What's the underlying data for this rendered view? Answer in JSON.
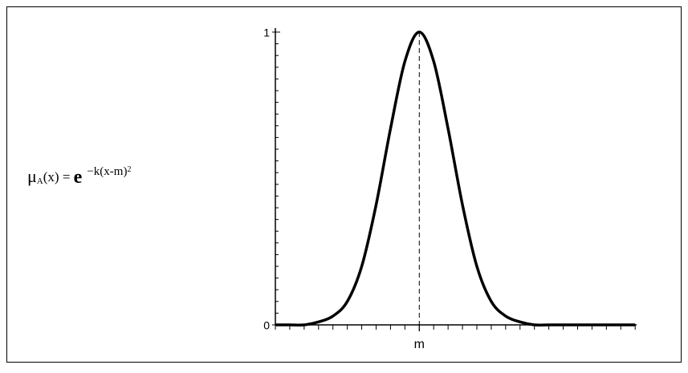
{
  "chart_data": {
    "type": "line",
    "formula": {
      "mu": "μ",
      "sub": "A",
      "arg": "(x) = ",
      "base": "e",
      "exponent": "−k(x-m)",
      "power": "2"
    },
    "x": [
      0,
      1,
      2,
      3,
      4,
      5,
      6,
      7,
      8,
      9,
      10,
      11,
      12,
      13,
      14,
      15,
      16,
      17,
      18,
      19,
      20,
      21,
      22,
      23,
      24,
      25
    ],
    "values": [
      0,
      0,
      0,
      0.01,
      0.03,
      0.08,
      0.2,
      0.41,
      0.67,
      0.9,
      1,
      0.9,
      0.67,
      0.41,
      0.2,
      0.08,
      0.03,
      0.01,
      0,
      0,
      0,
      0,
      0,
      0,
      0,
      0
    ],
    "color": "#000000",
    "xlim": [
      0,
      25.1
    ],
    "ylim": [
      0,
      1
    ],
    "xticks": [
      {
        "value": 10,
        "label": "m"
      }
    ],
    "yticks": [
      0,
      1
    ],
    "x_minor_step": 1,
    "y_minor_step": 0.04
  }
}
